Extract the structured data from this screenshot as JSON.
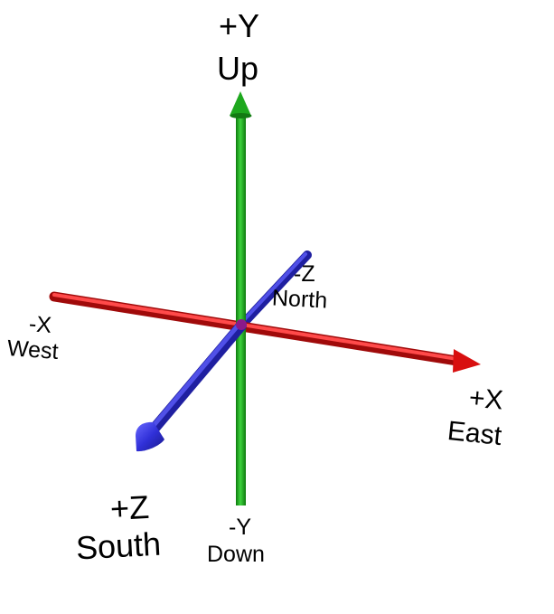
{
  "axes": {
    "pos_y": {
      "sign": "+Y",
      "direction": "Up",
      "color": "#1aa81a"
    },
    "neg_y": {
      "sign": "-Y",
      "direction": "Down",
      "color": "#1aa81a"
    },
    "pos_x": {
      "sign": "+X",
      "direction": "East",
      "color": "#e01010"
    },
    "neg_x": {
      "sign": "-X",
      "direction": "West",
      "color": "#e01010"
    },
    "pos_z": {
      "sign": "+Z",
      "direction": "South",
      "color": "#3030d8"
    },
    "neg_z": {
      "sign": "-Z",
      "direction": "North",
      "color": "#3030d8"
    }
  }
}
